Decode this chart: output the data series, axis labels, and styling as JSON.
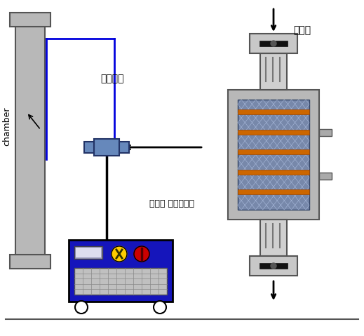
{
  "bg_color": "#ffffff",
  "chamber_label": "chamber",
  "heat_exchanger_label": "열교환기",
  "circulation_fan_label": "순환팬",
  "cooling_control_label": "냉등부 제어시스템",
  "chamber_color": "#b8b8b8",
  "chamber_outline": "#555555",
  "pipe_blue_color": "#0000dd",
  "pipe_black_color": "#000000",
  "heat_ex_body_color": "#6688bb",
  "heat_ex_outline": "#223366",
  "machine_body_color": "#1515bb",
  "machine_outline": "#000000",
  "knob_yellow_color": "#ffcc00",
  "knob_red_color": "#cc0000",
  "device_outer_color": "#b0b0b0",
  "device_inner_blue": "#8899cc",
  "device_orange": "#cc6600",
  "duct_color": "#d0d0d0",
  "fan_housing_color": "#c0c0c0",
  "fan_blade_color": "#222222",
  "side_pipe_color": "#999999"
}
